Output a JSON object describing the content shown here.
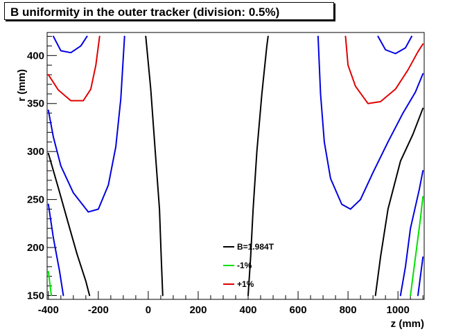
{
  "chart_data": {
    "type": "line",
    "title": "B uniformity in the outer tracker (division: 0.5%)",
    "xlabel": "z (mm)",
    "ylabel": "r (mm)",
    "xlim": [
      -405,
      1105
    ],
    "ylim": [
      146,
      424
    ],
    "x_ticks": [
      -400,
      -200,
      0,
      200,
      400,
      600,
      800,
      1000
    ],
    "y_ticks": [
      150,
      200,
      250,
      300,
      350,
      400
    ],
    "grid": false,
    "legend_position": "bottom-center",
    "legend": [
      {
        "label": "B=1.984T",
        "color": "#000000"
      },
      {
        "label": "-1%",
        "color": "#00e000"
      },
      {
        "label": "+1%",
        "color": "#e00000"
      }
    ],
    "contours": [
      {
        "level": "B",
        "color": "#000000",
        "points": [
          [
            -400,
            298
          ],
          [
            -360,
            262
          ],
          [
            -320,
            225
          ],
          [
            -285,
            193
          ],
          [
            -250,
            165
          ],
          [
            -235,
            150
          ]
        ]
      },
      {
        "level": "B",
        "color": "#000000",
        "points": [
          [
            -10,
            420
          ],
          [
            10,
            365
          ],
          [
            28,
            300
          ],
          [
            45,
            240
          ],
          [
            52,
            190
          ],
          [
            58,
            150
          ]
        ]
      },
      {
        "level": "B",
        "color": "#000000",
        "points": [
          [
            400,
            150
          ],
          [
            410,
            190
          ],
          [
            420,
            240
          ],
          [
            435,
            300
          ],
          [
            455,
            360
          ],
          [
            475,
            410
          ],
          [
            480,
            420
          ]
        ]
      },
      {
        "level": "B",
        "color": "#000000",
        "points": [
          [
            910,
            150
          ],
          [
            930,
            190
          ],
          [
            960,
            240
          ],
          [
            1010,
            290
          ],
          [
            1060,
            318
          ],
          [
            1100,
            345
          ]
        ]
      },
      {
        "level": "-0.5%",
        "color": "#0000e0",
        "points": [
          [
            -400,
            245
          ],
          [
            -380,
            210
          ],
          [
            -355,
            175
          ],
          [
            -340,
            150
          ]
        ]
      },
      {
        "level": "-0.5%",
        "color": "#0000e0",
        "points": [
          [
            -400,
            343
          ],
          [
            -380,
            315
          ],
          [
            -350,
            285
          ],
          [
            -300,
            257
          ],
          [
            -240,
            237
          ],
          [
            -200,
            240
          ],
          [
            -160,
            265
          ],
          [
            -130,
            305
          ],
          [
            -110,
            355
          ],
          [
            -95,
            420
          ]
        ]
      },
      {
        "level": "-0.5%",
        "color": "#0000e0",
        "points": [
          [
            -380,
            420
          ],
          [
            -350,
            405
          ],
          [
            -310,
            403
          ],
          [
            -270,
            410
          ],
          [
            -245,
            420
          ]
        ]
      },
      {
        "level": "-0.5%",
        "color": "#0000e0",
        "points": [
          [
            680,
            420
          ],
          [
            690,
            360
          ],
          [
            705,
            310
          ],
          [
            730,
            272
          ],
          [
            775,
            245
          ],
          [
            810,
            240
          ],
          [
            850,
            250
          ],
          [
            900,
            278
          ],
          [
            960,
            310
          ],
          [
            1020,
            340
          ],
          [
            1070,
            362
          ],
          [
            1100,
            381
          ]
        ]
      },
      {
        "level": "-0.5%",
        "color": "#0000e0",
        "points": [
          [
            1010,
            150
          ],
          [
            1030,
            180
          ],
          [
            1050,
            220
          ],
          [
            1085,
            260
          ],
          [
            1100,
            280
          ]
        ]
      },
      {
        "level": "-0.5%",
        "color": "#0000e0",
        "points": [
          [
            920,
            420
          ],
          [
            950,
            406
          ],
          [
            990,
            402
          ],
          [
            1030,
            408
          ],
          [
            1055,
            420
          ]
        ]
      },
      {
        "level": "-0.5%",
        "color": "#0000e0",
        "points": [
          [
            1080,
            150
          ],
          [
            1100,
            190
          ]
        ]
      },
      {
        "level": "-1%",
        "color": "#00e000",
        "points": [
          [
            -400,
            175
          ],
          [
            -388,
            150
          ]
        ]
      },
      {
        "level": "-1%",
        "color": "#00e000",
        "points": [
          [
            1050,
            150
          ],
          [
            1070,
            190
          ],
          [
            1090,
            230
          ],
          [
            1100,
            253
          ]
        ]
      },
      {
        "level": "+1%",
        "color": "#e00000",
        "points": [
          [
            -400,
            380
          ],
          [
            -360,
            364
          ],
          [
            -310,
            353
          ],
          [
            -260,
            353
          ],
          [
            -230,
            365
          ],
          [
            -210,
            390
          ],
          [
            -195,
            420
          ]
        ]
      },
      {
        "level": "+1%",
        "color": "#e00000",
        "points": [
          [
            790,
            420
          ],
          [
            800,
            390
          ],
          [
            830,
            368
          ],
          [
            880,
            350
          ],
          [
            930,
            352
          ],
          [
            990,
            365
          ],
          [
            1040,
            385
          ],
          [
            1080,
            404
          ],
          [
            1100,
            412
          ]
        ]
      }
    ]
  }
}
